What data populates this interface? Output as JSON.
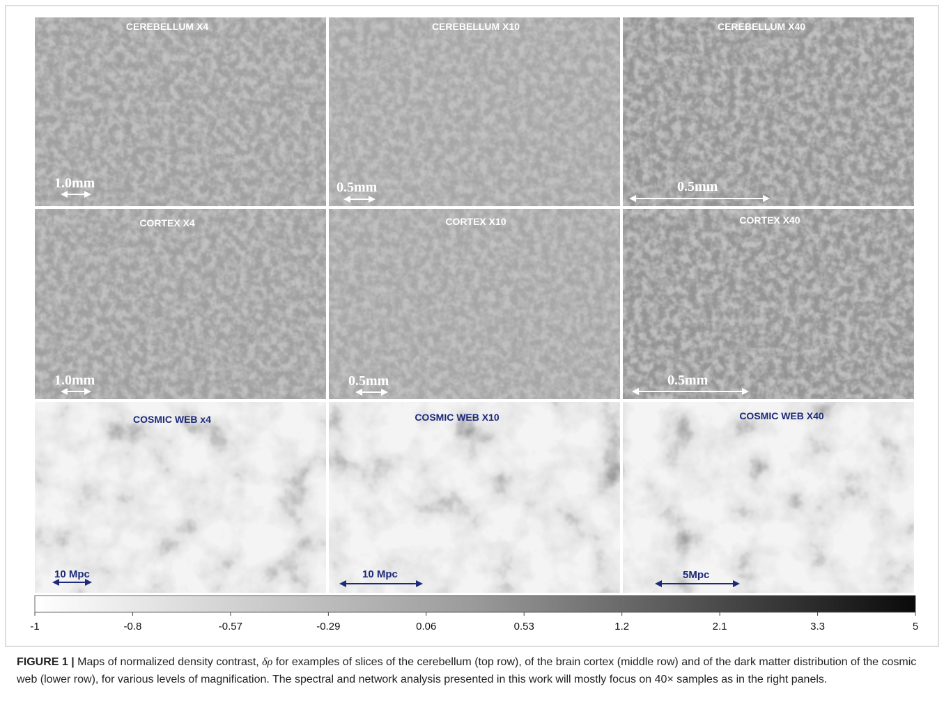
{
  "panels": [
    {
      "title": "CEREBELLUM X4",
      "scale": "1.0mm"
    },
    {
      "title": "CEREBELLUM X10",
      "scale": "0.5mm"
    },
    {
      "title": "CEREBELLUM X40",
      "scale": "0.5mm"
    },
    {
      "title": "CORTEX X4",
      "scale": "1.0mm"
    },
    {
      "title": "CORTEX X10",
      "scale": "0.5mm"
    },
    {
      "title": "CORTEX X40",
      "scale": "0.5mm"
    },
    {
      "title": "COSMIC WEB x4",
      "scale": "10 Mpc"
    },
    {
      "title": "COSMIC WEB X10",
      "scale": "10 Mpc"
    },
    {
      "title": "COSMIC WEB X40",
      "scale": "5Mpc"
    }
  ],
  "colorbar": {
    "ticks": [
      -1,
      -0.8,
      -0.57,
      -0.29,
      0.06,
      0.53,
      1.2,
      2.1,
      3.3,
      5
    ]
  },
  "caption": {
    "label": "FIGURE 1 |",
    "text_before": " Maps of normalized density contrast, ",
    "symbol": "δρ",
    "text_after": " for examples of slices of the cerebellum (top row), of the brain cortex (middle row) and of the dark matter distribution of the cosmic web (lower row), for various levels of magnification. The spectral and network analysis presented in this work will mostly focus on 40× samples as in the right panels."
  }
}
